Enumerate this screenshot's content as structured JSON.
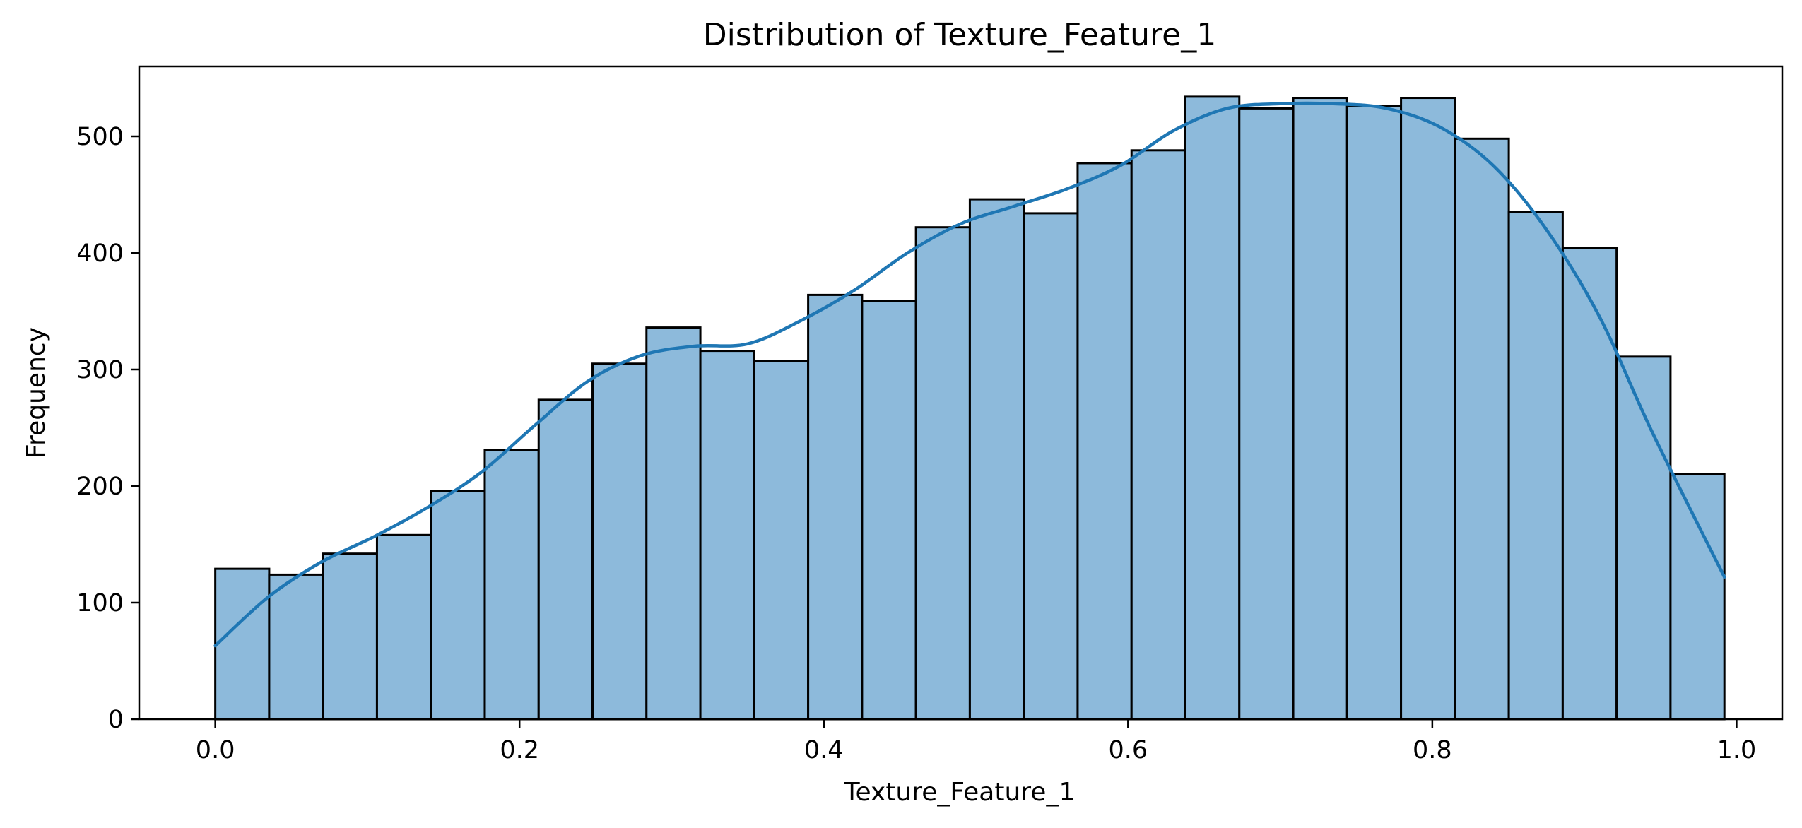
{
  "chart_data": {
    "type": "bar",
    "title": "Distribution of Texture_Feature_1",
    "xlabel": "Texture_Feature_1",
    "ylabel": "Frequency",
    "xlim": [
      -0.05,
      1.03
    ],
    "ylim": [
      0,
      560
    ],
    "x_ticks": [
      0.0,
      0.2,
      0.4,
      0.6,
      0.8,
      1.0
    ],
    "x_tick_labels": [
      "0.0",
      "0.2",
      "0.4",
      "0.6",
      "0.8",
      "1.0"
    ],
    "y_ticks": [
      0,
      100,
      200,
      300,
      400,
      500
    ],
    "y_tick_labels": [
      "0",
      "100",
      "200",
      "300",
      "400",
      "500"
    ],
    "grid": false,
    "legend": "none",
    "bin_start": 0.0,
    "bin_end": 0.992,
    "bin_count": 28,
    "values": [
      129,
      124,
      142,
      158,
      196,
      231,
      274,
      305,
      336,
      316,
      307,
      364,
      359,
      422,
      446,
      434,
      477,
      488,
      534,
      524,
      533,
      526,
      533,
      498,
      435,
      404,
      311,
      210
    ],
    "kde_curve": {
      "x": [
        0.0,
        0.035,
        0.07,
        0.105,
        0.14,
        0.175,
        0.21,
        0.245,
        0.28,
        0.315,
        0.35,
        0.385,
        0.42,
        0.455,
        0.49,
        0.525,
        0.56,
        0.595,
        0.63,
        0.665,
        0.7,
        0.735,
        0.77,
        0.805,
        0.84,
        0.875,
        0.91,
        0.945,
        0.992
      ],
      "y": [
        63,
        105,
        135,
        157,
        182,
        212,
        252,
        290,
        312,
        320,
        322,
        342,
        368,
        400,
        425,
        440,
        455,
        475,
        505,
        524,
        528,
        528,
        524,
        508,
        475,
        420,
        345,
        245,
        122
      ]
    },
    "colors": {
      "bar_fill": "#8dbadb",
      "bar_edge": "#000000",
      "kde_line": "#1f77b4"
    }
  }
}
